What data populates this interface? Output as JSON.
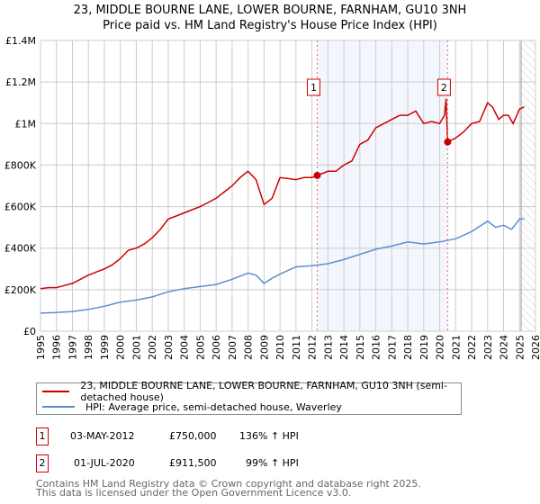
{
  "chart_data": {
    "type": "line",
    "title": "23, MIDDLE BOURNE LANE, LOWER BOURNE, FARNHAM, GU10 3NH",
    "subtitle": "Price paid vs. HM Land Registry's House Price Index (HPI)",
    "xlim": [
      1995,
      2026
    ],
    "ylim": [
      0,
      1400000
    ],
    "x_ticks": [
      "1995",
      "1996",
      "1997",
      "1998",
      "1999",
      "2000",
      "2001",
      "2002",
      "2003",
      "2004",
      "2005",
      "2006",
      "2007",
      "2008",
      "2009",
      "2010",
      "2011",
      "2012",
      "2013",
      "2014",
      "2015",
      "2016",
      "2017",
      "2018",
      "2019",
      "2020",
      "2021",
      "2022",
      "2023",
      "2024",
      "2025",
      "2026"
    ],
    "y_ticks": [
      {
        "v": 0,
        "label": "£0"
      },
      {
        "v": 200000,
        "label": "£200K"
      },
      {
        "v": 400000,
        "label": "£400K"
      },
      {
        "v": 600000,
        "label": "£600K"
      },
      {
        "v": 800000,
        "label": "£800K"
      },
      {
        "v": 1000000,
        "label": "£1M"
      },
      {
        "v": 1200000,
        "label": "£1.2M"
      },
      {
        "v": 1400000,
        "label": "£1.4M"
      }
    ],
    "grid": true,
    "shaded_range": [
      2012.33,
      2020.5
    ],
    "forecast_from": 2025.1,
    "series": [
      {
        "name": "23, MIDDLE BOURNE LANE, LOWER BOURNE, FARNHAM, GU10 3NH (semi-detached house)",
        "color": "#cc0000",
        "x": [
          1995,
          1995.5,
          1996,
          1996.5,
          1997,
          1997.5,
          1998,
          1998.5,
          1999,
          1999.5,
          2000,
          2000.5,
          2001,
          2001.5,
          2002,
          2002.5,
          2003,
          2003.5,
          2004,
          2004.5,
          2005,
          2005.5,
          2006,
          2006.5,
          2007,
          2007.5,
          2008,
          2008.5,
          2009,
          2009.5,
          2010,
          2010.5,
          2011,
          2011.5,
          2012,
          2012.33,
          2013,
          2013.5,
          2014,
          2014.5,
          2015,
          2015.5,
          2016,
          2016.5,
          2017,
          2017.5,
          2018,
          2018.5,
          2019,
          2019.5,
          2020,
          2020.3,
          2020.4,
          2020.5,
          2021,
          2021.5,
          2022,
          2022.5,
          2023,
          2023.3,
          2023.7,
          2024,
          2024.3,
          2024.6,
          2025,
          2025.3
        ],
        "y": [
          205000,
          210000,
          210000,
          220000,
          230000,
          250000,
          270000,
          285000,
          300000,
          320000,
          350000,
          390000,
          400000,
          420000,
          450000,
          490000,
          540000,
          555000,
          570000,
          585000,
          600000,
          620000,
          640000,
          670000,
          700000,
          740000,
          770000,
          730000,
          610000,
          640000,
          740000,
          735000,
          730000,
          740000,
          740000,
          750000,
          770000,
          770000,
          800000,
          820000,
          900000,
          920000,
          980000,
          1000000,
          1020000,
          1040000,
          1040000,
          1060000,
          1000000,
          1010000,
          1000000,
          1040000,
          1120000,
          911500,
          930000,
          960000,
          1000000,
          1010000,
          1100000,
          1080000,
          1020000,
          1040000,
          1040000,
          1000000,
          1070000,
          1080000
        ]
      },
      {
        "name": "HPI: Average price, semi-detached house, Waverley",
        "color": "#5b8fd0",
        "x": [
          1995,
          1996,
          1997,
          1998,
          1999,
          2000,
          2001,
          2002,
          2003,
          2004,
          2005,
          2006,
          2007,
          2008,
          2008.5,
          2009,
          2009.5,
          2010,
          2011,
          2012,
          2013,
          2014,
          2015,
          2016,
          2017,
          2018,
          2019,
          2020,
          2021,
          2022,
          2023,
          2023.5,
          2024,
          2024.5,
          2025,
          2025.3
        ],
        "y": [
          87000,
          90000,
          95000,
          105000,
          120000,
          140000,
          150000,
          165000,
          190000,
          205000,
          215000,
          225000,
          250000,
          280000,
          270000,
          230000,
          255000,
          275000,
          310000,
          315000,
          325000,
          345000,
          370000,
          395000,
          410000,
          430000,
          420000,
          430000,
          445000,
          480000,
          530000,
          500000,
          510000,
          490000,
          540000,
          540000
        ]
      }
    ],
    "annotations": [
      {
        "label": "1",
        "x": 2012.33,
        "y": 750000
      },
      {
        "label": "2",
        "x": 2020.5,
        "y": 911500
      }
    ]
  },
  "legend": {
    "items": [
      {
        "label": "23, MIDDLE BOURNE LANE, LOWER BOURNE, FARNHAM, GU10 3NH (semi-detached house)",
        "color": "#cc0000"
      },
      {
        "label": "HPI: Average price, semi-detached house, Waverley",
        "color": "#5b8fd0"
      }
    ]
  },
  "transactions": [
    {
      "num": "1",
      "date": "03-MAY-2012",
      "price": "£750,000",
      "hpi": "136% ↑ HPI"
    },
    {
      "num": "2",
      "date": "01-JUL-2020",
      "price": "£911,500",
      "hpi": "99% ↑ HPI"
    }
  ],
  "footer": {
    "line1": "Contains HM Land Registry data © Crown copyright and database right 2025.",
    "line2": "This data is licensed under the Open Government Licence v3.0."
  }
}
